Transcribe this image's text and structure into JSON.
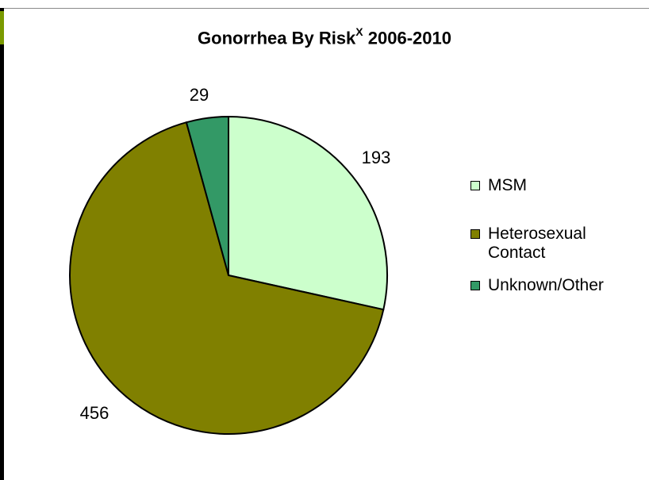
{
  "chart_data": {
    "type": "pie",
    "title": "Gonorrhea By Risk",
    "title_superscript": "X",
    "title_suffix": " 2006-2010",
    "categories": [
      "MSM",
      "Heterosexual Contact",
      "Unknown/Other"
    ],
    "legend_lines": [
      [
        "MSM"
      ],
      [
        "Heterosexual",
        "Contact"
      ],
      [
        "Unknown/Other"
      ]
    ],
    "values": [
      193,
      456,
      29
    ],
    "colors": [
      "#ccffcc",
      "#808000",
      "#339966"
    ],
    "legend_position": "right"
  }
}
